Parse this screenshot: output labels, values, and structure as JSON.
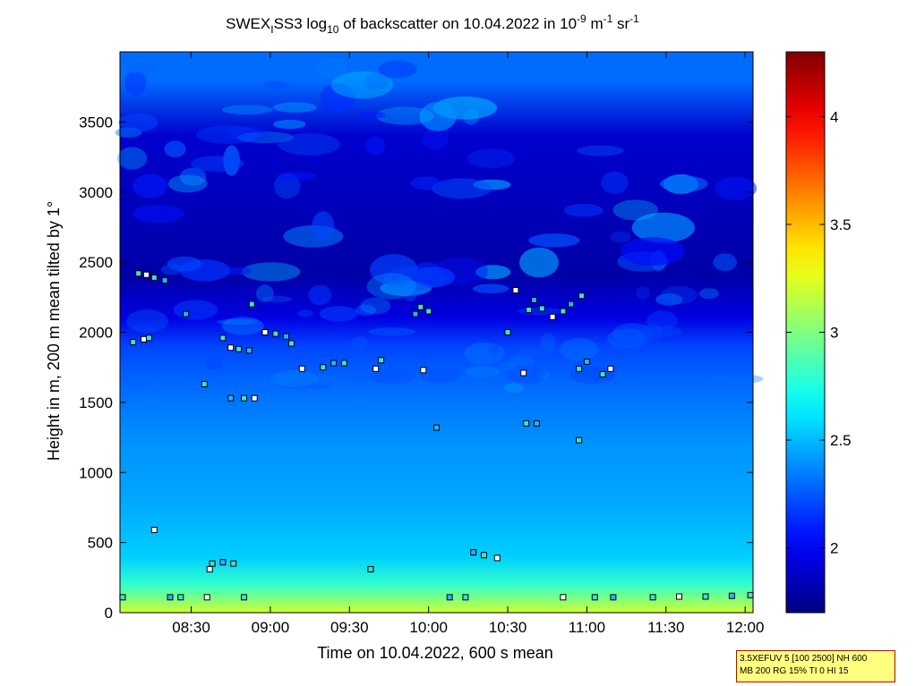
{
  "chart_data": {
    "type": "heatmap",
    "title": {
      "prefix": "SWEX",
      "sub1": "I",
      "mid": "SS3 log",
      "sub2": "10",
      "mid2": " of backscatter on 10.04.2022 in 10",
      "sup1": "-9",
      "mid3": " m",
      "sup2": "-1",
      "mid4": " sr",
      "sup3": "-1"
    },
    "xlabel": "Time on 10.04.2022, 600 s mean",
    "ylabel": "Height in m, 200 m mean tilted by 1°",
    "x_range": [
      "08:03",
      "12:03"
    ],
    "y_range": [
      0,
      4000
    ],
    "x_ticks": [
      "08:30",
      "09:00",
      "09:30",
      "10:00",
      "10:30",
      "11:00",
      "11:30",
      "12:00"
    ],
    "y_ticks": [
      0,
      500,
      1000,
      1500,
      2000,
      2500,
      3000,
      3500
    ],
    "colorbar": {
      "range": [
        1.7,
        4.3
      ],
      "ticks": [
        "2",
        "2.5",
        "3",
        "3.5",
        "4"
      ],
      "colormap": "jet"
    },
    "field_profile": [
      {
        "height": 0,
        "value": 3.2
      },
      {
        "height": 100,
        "value": 3.0
      },
      {
        "height": 200,
        "value": 2.8
      },
      {
        "height": 400,
        "value": 2.55
      },
      {
        "height": 800,
        "value": 2.45
      },
      {
        "height": 1200,
        "value": 2.4
      },
      {
        "height": 1600,
        "value": 2.3
      },
      {
        "height": 1900,
        "value": 2.2
      },
      {
        "height": 2100,
        "value": 1.95
      },
      {
        "height": 2400,
        "value": 1.8
      },
      {
        "height": 3400,
        "value": 1.9
      },
      {
        "height": 3800,
        "value": 2.3
      }
    ],
    "cloud_base_markers": [
      {
        "time": "08:10",
        "height": 2420
      },
      {
        "time": "08:13",
        "height": 2410
      },
      {
        "time": "08:16",
        "height": 2390
      },
      {
        "time": "08:20",
        "height": 2370
      },
      {
        "time": "08:08",
        "height": 1930
      },
      {
        "time": "08:12",
        "height": 1950
      },
      {
        "time": "08:14",
        "height": 1960
      },
      {
        "time": "08:28",
        "height": 2130
      },
      {
        "time": "08:42",
        "height": 1960
      },
      {
        "time": "08:45",
        "height": 1890
      },
      {
        "time": "08:48",
        "height": 1880
      },
      {
        "time": "08:52",
        "height": 1870
      },
      {
        "time": "08:53",
        "height": 2200
      },
      {
        "time": "08:58",
        "height": 2000
      },
      {
        "time": "09:02",
        "height": 1990
      },
      {
        "time": "09:06",
        "height": 1970
      },
      {
        "time": "09:08",
        "height": 1920
      },
      {
        "time": "09:12",
        "height": 1740
      },
      {
        "time": "09:20",
        "height": 1750
      },
      {
        "time": "09:24",
        "height": 1780
      },
      {
        "time": "09:28",
        "height": 1780
      },
      {
        "time": "09:40",
        "height": 1740
      },
      {
        "time": "09:42",
        "height": 1800
      },
      {
        "time": "09:55",
        "height": 2130
      },
      {
        "time": "09:57",
        "height": 2180
      },
      {
        "time": "09:58",
        "height": 1730
      },
      {
        "time": "10:00",
        "height": 2150
      },
      {
        "time": "10:03",
        "height": 1320
      },
      {
        "time": "10:30",
        "height": 2000
      },
      {
        "time": "10:33",
        "height": 2300
      },
      {
        "time": "10:38",
        "height": 2160
      },
      {
        "time": "10:40",
        "height": 2230
      },
      {
        "time": "10:43",
        "height": 2170
      },
      {
        "time": "10:47",
        "height": 2110
      },
      {
        "time": "10:51",
        "height": 2150
      },
      {
        "time": "10:54",
        "height": 2200
      },
      {
        "time": "10:58",
        "height": 2260
      },
      {
        "time": "10:36",
        "height": 1710
      },
      {
        "time": "10:57",
        "height": 1740
      },
      {
        "time": "11:00",
        "height": 1790
      },
      {
        "time": "11:06",
        "height": 1700
      },
      {
        "time": "11:09",
        "height": 1740
      },
      {
        "time": "08:35",
        "height": 1630
      },
      {
        "time": "08:45",
        "height": 1530
      },
      {
        "time": "08:50",
        "height": 1530
      },
      {
        "time": "08:54",
        "height": 1530
      },
      {
        "time": "10:37",
        "height": 1350
      },
      {
        "time": "10:41",
        "height": 1350
      },
      {
        "time": "10:57",
        "height": 1230
      },
      {
        "time": "08:16",
        "height": 590
      },
      {
        "time": "08:38",
        "height": 350
      },
      {
        "time": "08:42",
        "height": 360
      },
      {
        "time": "08:46",
        "height": 350
      },
      {
        "time": "08:37",
        "height": 310
      },
      {
        "time": "09:38",
        "height": 310
      },
      {
        "time": "10:17",
        "height": 430
      },
      {
        "time": "10:21",
        "height": 410
      },
      {
        "time": "10:26",
        "height": 390
      },
      {
        "time": "08:04",
        "height": 110
      },
      {
        "time": "08:22",
        "height": 110
      },
      {
        "time": "08:26",
        "height": 110
      },
      {
        "time": "08:36",
        "height": 110
      },
      {
        "time": "08:50",
        "height": 110
      },
      {
        "time": "10:08",
        "height": 110
      },
      {
        "time": "10:14",
        "height": 110
      },
      {
        "time": "10:51",
        "height": 110
      },
      {
        "time": "11:03",
        "height": 110
      },
      {
        "time": "11:10",
        "height": 110
      },
      {
        "time": "11:25",
        "height": 110
      },
      {
        "time": "11:35",
        "height": 115
      },
      {
        "time": "11:45",
        "height": 115
      },
      {
        "time": "11:55",
        "height": 120
      },
      {
        "time": "12:02",
        "height": 125
      }
    ]
  },
  "infobox": {
    "line1": "3.5XEFUV 5 [100 2500] NH 600",
    "line2": "MB 200 RG 15% TI 0 HI 15"
  }
}
